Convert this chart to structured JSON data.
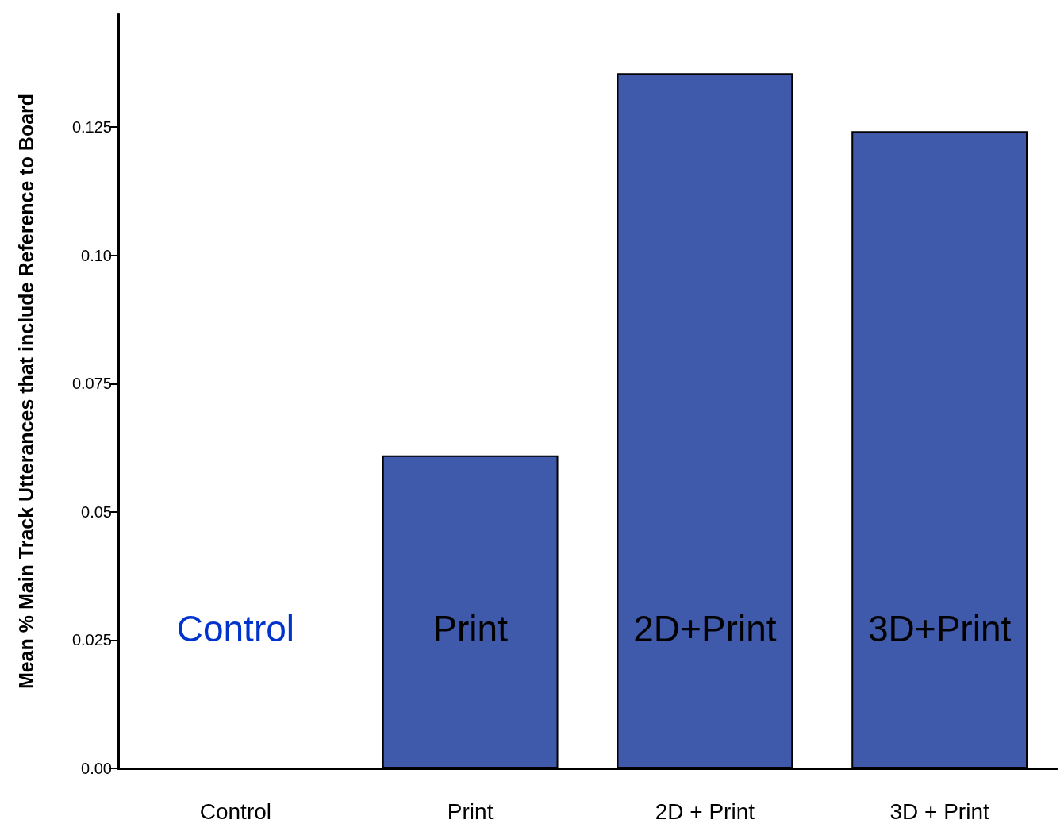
{
  "chart_data": {
    "type": "bar",
    "ylabel": "Mean % Main Track Utterances that include Reference to Board",
    "categories": [
      "Control",
      "Print",
      "2D + Print",
      "3D + Print"
    ],
    "values": [
      0,
      0.061,
      0.1355,
      0.1242
    ],
    "color": "#3f59ab",
    "ylim": [
      0,
      0.147
    ],
    "yticks": [
      {
        "value": 0,
        "label": "0.00"
      },
      0.025,
      0.05,
      0.075,
      {
        "value": 0.1,
        "label": "0.10"
      },
      0.125
    ],
    "grid": false,
    "annotations": [
      "Control",
      "Print",
      "2D+Print",
      "3D+Print"
    ]
  }
}
